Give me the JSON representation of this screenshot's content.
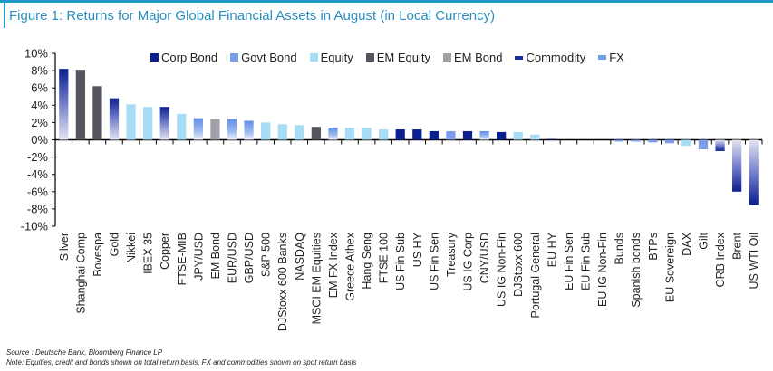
{
  "header": {
    "title": "Figure 1: Returns for Major Global Financial Assets in August (in Local Currency)"
  },
  "footer": {
    "source": "Source : Deutsche Bank, Bloomberg Finance LP",
    "note": "Note: Equities, credit and bonds shown on total return basis, FX and commodities shown on spot return basis"
  },
  "colors": {
    "Corp Bond": "#0b1f8f",
    "Govt Bond": "#7b9de8",
    "Equity": "#a6dcf5",
    "EM Equity": "#54555e",
    "EM Bond": "#a0a0a8",
    "Commodity": "#1a2ea0",
    "FX": "#6f9fe8",
    "title": "#2a8fc0"
  },
  "chart_data": {
    "type": "bar",
    "title": "Figure 1: Returns for Major Global Financial Assets in August (in Local Currency)",
    "xlabel": "",
    "ylabel": "",
    "ylim": [
      -10,
      10
    ],
    "yticks": [
      10,
      8,
      6,
      4,
      2,
      0,
      -2,
      -4,
      -6,
      -8,
      -10
    ],
    "ytick_labels": [
      "10%",
      "8%",
      "6%",
      "4%",
      "2%",
      "0%",
      "-2%",
      "-4%",
      "-6%",
      "-8%",
      "-10%"
    ],
    "grid": false,
    "legend_position": "top",
    "legend": [
      "Corp Bond",
      "Govt Bond",
      "Equity",
      "EM Equity",
      "EM Bond",
      "Commodity",
      "FX"
    ],
    "categories": [
      "Silver",
      "Shanghai Comp",
      "Bovespa",
      "Gold",
      "Nikkei",
      "IBEX 35",
      "Copper",
      "FTSE-MIB",
      "JPY/USD",
      "EM Bond",
      "EUR/USD",
      "GBP/USD",
      "S&P 500",
      "DJStoxx 600 Banks",
      "NASDAQ",
      "MSCI EM Equities",
      "EM FX Index",
      "Greece Athex",
      "Hang Seng",
      "FTSE 100",
      "US Fin Sub",
      "US HY",
      "US Fin Sen",
      "Treasury",
      "US IG Corp",
      "CNY/USD",
      "US IG Non-Fin",
      "DJStoxx 600",
      "Portugal General",
      "EU HY",
      "EU Fin Sen",
      "EU Fin Sub",
      "EU IG Non-Fin",
      "Bunds",
      "Spanish bonds",
      "BTPs",
      "EU Sovereign",
      "DAX",
      "Gilt",
      "CRB Index",
      "Brent",
      "US WTI Oil"
    ],
    "values": [
      8.2,
      8.1,
      6.2,
      4.8,
      4.1,
      3.8,
      3.8,
      3.0,
      2.5,
      2.4,
      2.4,
      2.2,
      2.0,
      1.8,
      1.7,
      1.5,
      1.4,
      1.4,
      1.4,
      1.2,
      1.2,
      1.2,
      1.0,
      1.0,
      1.0,
      1.0,
      0.9,
      0.9,
      0.6,
      0.1,
      0.0,
      0.0,
      0.0,
      -0.2,
      -0.2,
      -0.3,
      -0.4,
      -0.7,
      -1.1,
      -1.3,
      -6.0,
      -7.5
    ],
    "asset_class": [
      "Commodity",
      "EM Equity",
      "EM Equity",
      "Commodity",
      "Equity",
      "Equity",
      "Commodity",
      "Equity",
      "FX",
      "EM Bond",
      "FX",
      "FX",
      "Equity",
      "Equity",
      "Equity",
      "EM Equity",
      "FX",
      "Equity",
      "Equity",
      "Equity",
      "Corp Bond",
      "Corp Bond",
      "Corp Bond",
      "Govt Bond",
      "Corp Bond",
      "FX",
      "Corp Bond",
      "Equity",
      "Equity",
      "Corp Bond",
      "Corp Bond",
      "Corp Bond",
      "Corp Bond",
      "Govt Bond",
      "Govt Bond",
      "Govt Bond",
      "Govt Bond",
      "Equity",
      "Govt Bond",
      "Commodity",
      "Commodity",
      "Commodity"
    ]
  }
}
